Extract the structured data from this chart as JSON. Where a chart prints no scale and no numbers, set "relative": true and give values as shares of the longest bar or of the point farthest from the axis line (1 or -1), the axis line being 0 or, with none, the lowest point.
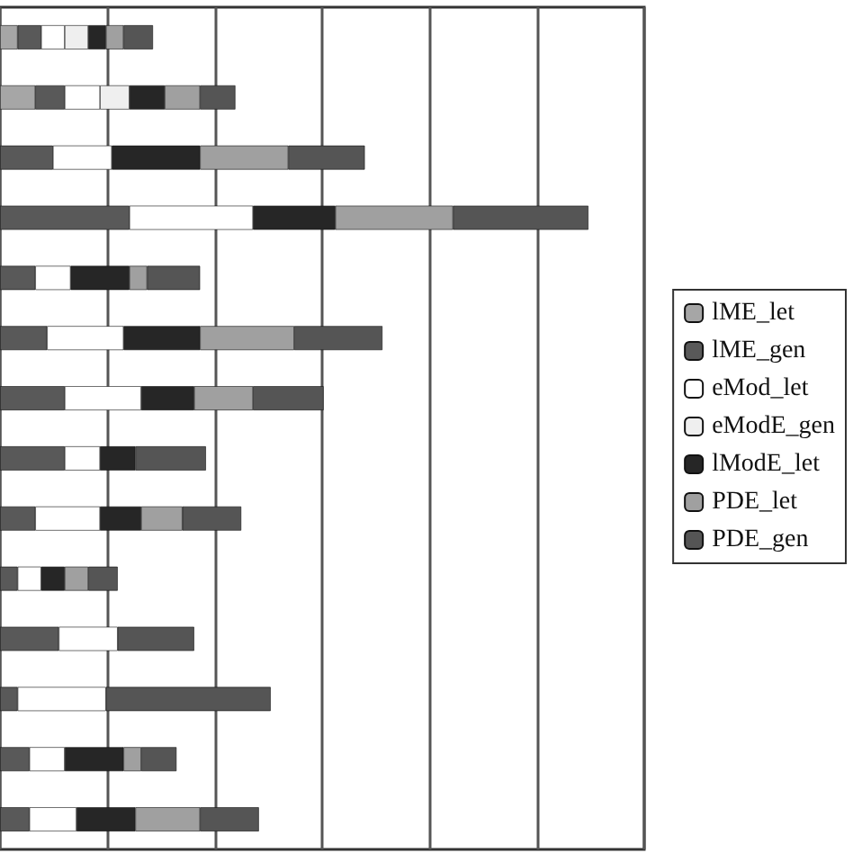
{
  "chart_data": {
    "type": "bar",
    "orientation": "horizontal",
    "stacked": true,
    "relative": true,
    "grid": "x",
    "legend": "right",
    "categories": [
      null,
      null,
      null,
      null,
      null,
      null,
      null,
      null,
      null,
      null,
      null,
      null,
      null,
      null
    ],
    "series": [
      {
        "name": "lME_let",
        "color": "#a6a6a6",
        "values": [
          0.03,
          0.06,
          null,
          null,
          null,
          null,
          null,
          null,
          null,
          null,
          null,
          null,
          null,
          null
        ]
      },
      {
        "name": "lME_gen",
        "color": "#595959",
        "values": [
          0.04,
          0.05,
          0.09,
          0.22,
          0.06,
          0.08,
          0.11,
          0.11,
          0.06,
          0.03,
          0.1,
          0.03,
          0.05,
          0.05
        ]
      },
      {
        "name": "eMod_let",
        "color": "#ffffff",
        "values": [
          0.04,
          0.06,
          0.1,
          0.21,
          0.06,
          0.13,
          0.13,
          0.06,
          0.11,
          0.04,
          0.1,
          0.15,
          0.06,
          0.08
        ]
      },
      {
        "name": "eModE_gen",
        "color": "#efefef",
        "values": [
          0.04,
          0.05,
          null,
          null,
          null,
          null,
          null,
          null,
          null,
          null,
          null,
          null,
          null,
          null
        ]
      },
      {
        "name": "lModE_let",
        "color": "#262626",
        "values": [
          0.03,
          0.06,
          0.15,
          0.14,
          0.1,
          0.13,
          0.09,
          0.06,
          0.07,
          0.04,
          null,
          null,
          0.1,
          0.1
        ]
      },
      {
        "name": "PDE_let",
        "color": "#a0a0a0",
        "values": [
          0.03,
          0.06,
          0.15,
          0.2,
          0.03,
          0.16,
          0.1,
          null,
          0.07,
          0.04,
          null,
          null,
          0.03,
          0.11
        ]
      },
      {
        "name": "PDE_gen",
        "color": "#555555",
        "values": [
          0.05,
          0.06,
          0.13,
          0.23,
          0.09,
          0.15,
          0.12,
          0.12,
          0.1,
          0.05,
          0.13,
          0.28,
          0.06,
          0.1
        ]
      }
    ]
  }
}
